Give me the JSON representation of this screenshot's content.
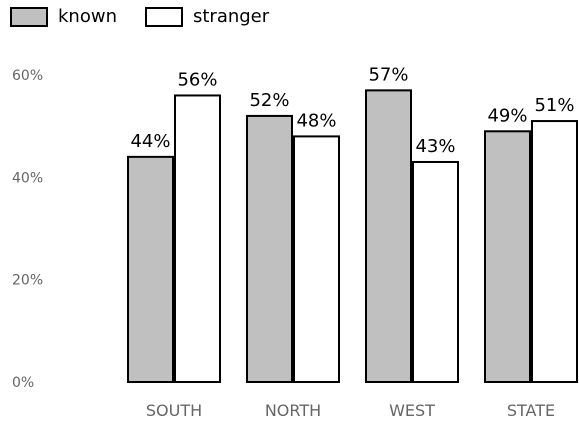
{
  "legend": {
    "items": [
      {
        "label": "known",
        "color": "#c0c0c0"
      },
      {
        "label": "stranger",
        "color": "#ffffff"
      }
    ]
  },
  "chart_data": {
    "type": "bar",
    "categories": [
      "SOUTH",
      "NORTH",
      "WEST",
      "STATE"
    ],
    "series": [
      {
        "name": "known",
        "values": [
          44,
          52,
          57,
          49
        ],
        "labels": [
          "44%",
          "52%",
          "57%",
          "49%"
        ],
        "color": "#c0c0c0"
      },
      {
        "name": "stranger",
        "values": [
          56,
          48,
          43,
          51
        ],
        "labels": [
          "56%",
          "48%",
          "43%",
          "51%"
        ],
        "color": "#ffffff"
      }
    ],
    "ylim": [
      0,
      60
    ],
    "yticks": [
      0,
      20,
      40,
      60
    ],
    "ytick_labels": [
      "0%",
      "20%",
      "40%",
      "60%"
    ],
    "grid": false,
    "legend_position": "top-left"
  }
}
